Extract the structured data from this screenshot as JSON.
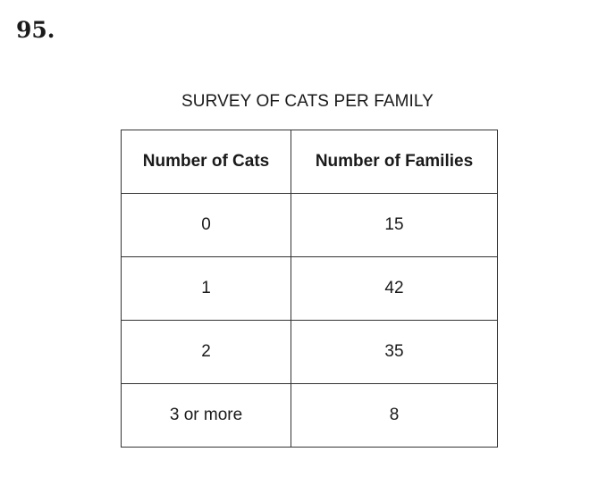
{
  "question_number": "95.",
  "table": {
    "title": "SURVEY OF CATS PER FAMILY",
    "headers": [
      "Number of Cats",
      "Number of Families"
    ],
    "rows": [
      [
        "0",
        "15"
      ],
      [
        "1",
        "42"
      ],
      [
        "2",
        "35"
      ],
      [
        "3 or more",
        "8"
      ]
    ]
  }
}
